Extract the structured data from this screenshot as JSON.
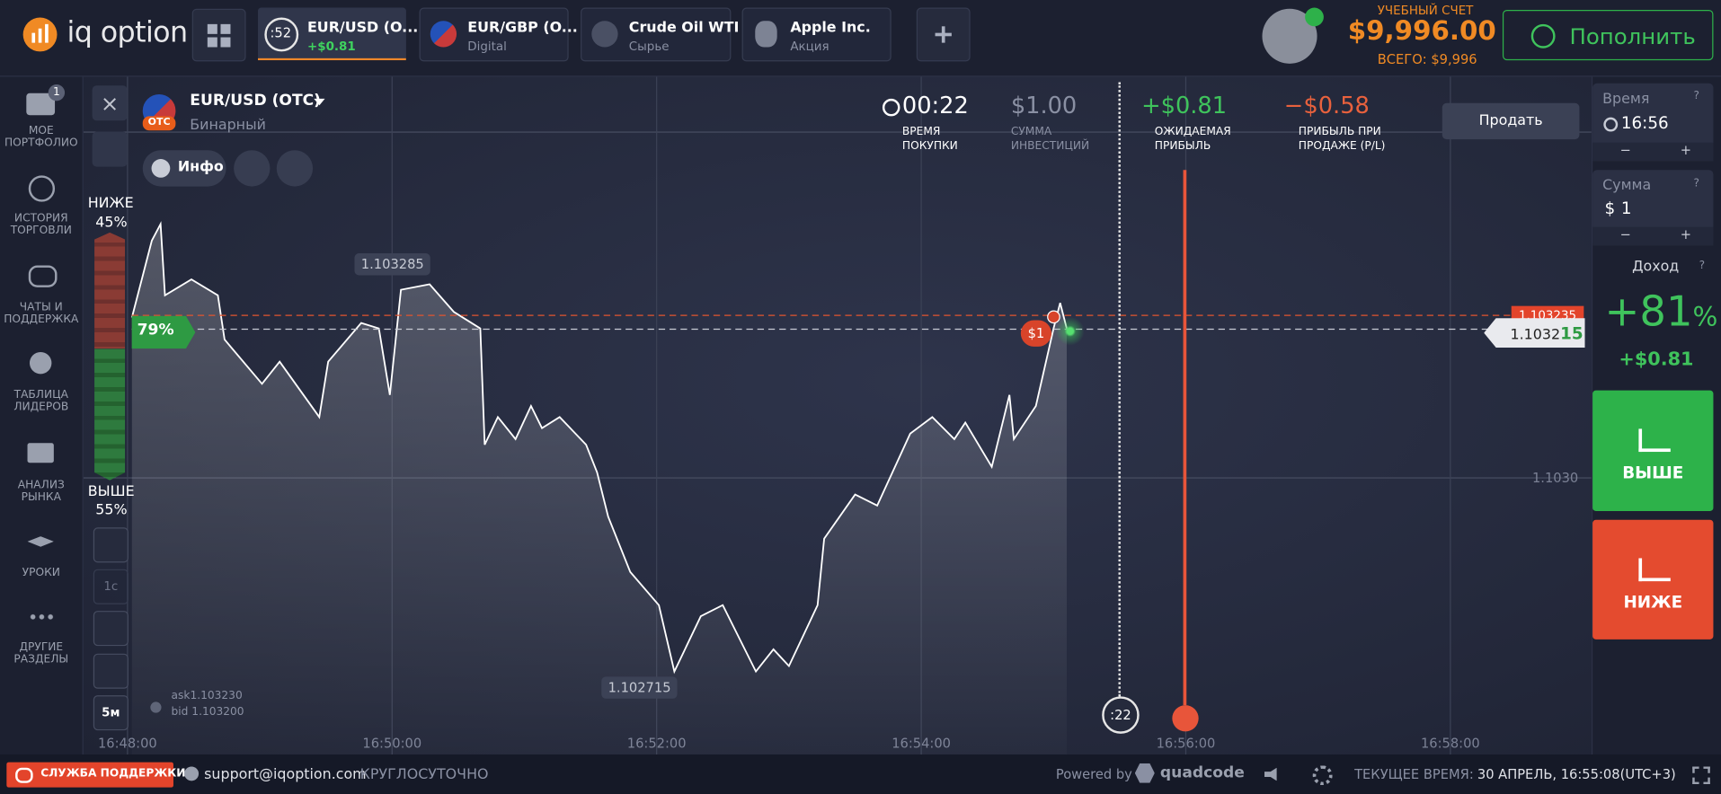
{
  "header": {
    "logo": "iq option",
    "tabs": [
      {
        "timer": ":52",
        "name": "EUR/USD (O...",
        "sub": "+$0.81"
      },
      {
        "name": "EUR/GBP (O...",
        "sub": "Digital"
      },
      {
        "name": "Crude Oil WTI",
        "sub": "Сырье"
      },
      {
        "name": "Apple Inc.",
        "sub": "Акция"
      }
    ],
    "account_type": "УЧЕБНЫЙ СЧЕТ",
    "balance": "$9,996.00",
    "total": "ВСЕГО: $9,996",
    "deposit": "Пополнить"
  },
  "sidebar": {
    "badge": "1",
    "items": [
      "МОЕ\nПОРТФОЛИО",
      "ИСТОРИЯ\nТОРГОВЛИ",
      "ЧАТЫ И\nПОДДЕРЖКА",
      "ТАБЛИЦА\nЛИДЕРОВ",
      "АНАЛИЗ\nРЫНКА",
      "УРОКИ",
      "ДРУГИЕ\nРАЗДЕЛЫ"
    ]
  },
  "asset": {
    "name": "EUR/USD (OTC)",
    "kind": "Бинарный",
    "badge": "OTC",
    "info": "Инфо"
  },
  "stats": [
    {
      "value": "00:22",
      "label": "ВРЕМЯ\nПОКУПКИ"
    },
    {
      "value": "$1.00",
      "label": "СУММА\nИНВЕСТИЦИЙ"
    },
    {
      "value": "+$0.81",
      "label": "ОЖИДАЕМАЯ\nПРИБЫЛЬ"
    },
    {
      "value": "−$0.58",
      "label": "ПРИБЫЛЬ ПРИ\nПРОДАЖЕ (P/L)"
    }
  ],
  "sell": "Продать",
  "sentiment": {
    "lower_label": "НИЖЕ",
    "lower": "45%",
    "higher_label": "ВЫШЕ",
    "higher": "55%",
    "payout": "79%"
  },
  "tools": [
    "1с",
    "5м"
  ],
  "quote": {
    "ask": "ask1.103230",
    "bid": "bid 1.103200"
  },
  "trade": {
    "bet": "$1",
    "timer": ":22"
  },
  "chart_data": {
    "type": "line",
    "color": "#ffffff",
    "x": [
      "16:48:02",
      "16:48:11",
      "16:48:15",
      "16:48:17",
      "16:48:29",
      "16:48:41",
      "16:48:44",
      "16:49:01",
      "16:49:09",
      "16:49:27",
      "16:49:31",
      "16:49:46",
      "16:49:54",
      "16:49:59",
      "16:50:04",
      "16:50:17",
      "16:50:28",
      "16:50:40",
      "16:50:42",
      "16:50:48",
      "16:50:56",
      "16:51:03",
      "16:51:08",
      "16:51:16",
      "16:51:28",
      "16:51:33",
      "16:51:38",
      "16:51:48",
      "16:52:01",
      "16:52:08",
      "16:52:20",
      "16:52:30",
      "16:52:45",
      "16:52:53",
      "16:53:00",
      "16:53:13",
      "16:53:16",
      "16:53:30",
      "16:53:40",
      "16:53:55",
      "16:54:05",
      "16:54:15",
      "16:54:20",
      "16:54:32",
      "16:54:40",
      "16:54:42",
      "16:54:52",
      "16:55:00",
      "16:55:03",
      "16:55:06"
    ],
    "values": [
      1.103232,
      1.103343,
      1.103367,
      1.103264,
      1.103287,
      1.103264,
      1.1032,
      1.103136,
      1.103168,
      1.103088,
      1.103168,
      1.103224,
      1.103216,
      1.10312,
      1.103272,
      1.10328,
      1.10324,
      1.103216,
      1.103048,
      1.103088,
      1.103056,
      1.103104,
      1.103072,
      1.103088,
      1.103048,
      1.103008,
      1.102944,
      1.102864,
      1.102816,
      1.10272,
      1.1028,
      1.102816,
      1.10272,
      1.102752,
      1.102728,
      1.102816,
      1.102912,
      1.102976,
      1.10296,
      1.103064,
      1.103088,
      1.103056,
      1.10308,
      1.103016,
      1.10312,
      1.103056,
      1.103104,
      1.103216,
      1.103253,
      1.103216
    ],
    "xlim": [
      "16:47:40",
      "16:59:04"
    ],
    "ylim": [
      1.1026,
      1.10358
    ],
    "xticks": [
      "16:48:00",
      "16:50:00",
      "16:52:00",
      "16:54:00",
      "16:56:00",
      "16:58:00"
    ],
    "yticks": [
      {
        "value": 1.103,
        "label": "1.1030"
      },
      1.1035
    ],
    "grid": true,
    "high": 1.103285,
    "low": 1.102715,
    "strike": 1.103235,
    "current": {
      "value": 1.103215,
      "label_main": "1.1032",
      "label_tail": "15"
    }
  },
  "right_panel": {
    "time_label": "Время",
    "time": "16:56",
    "amount_label": "Сумма",
    "currency": "$",
    "amount": "1",
    "income_label": "Доход",
    "income_pct": "+81",
    "pct_sign": "%",
    "income": "+$0.81",
    "up": "ВЫШЕ",
    "down": "НИЖЕ",
    "help": "?"
  },
  "footer": {
    "support": "СЛУЖБА ПОДДЕРЖКИ",
    "email": "support@iqoption.com",
    "hours": "КРУГЛОСУТОЧНО",
    "powered": "Powered by",
    "brand": "quadcode",
    "time_label": "ТЕКУЩЕЕ ВРЕМЯ:",
    "time": "30 АПРЕЛЬ, 16:55:08",
    "tz": "(UTC+3)"
  }
}
